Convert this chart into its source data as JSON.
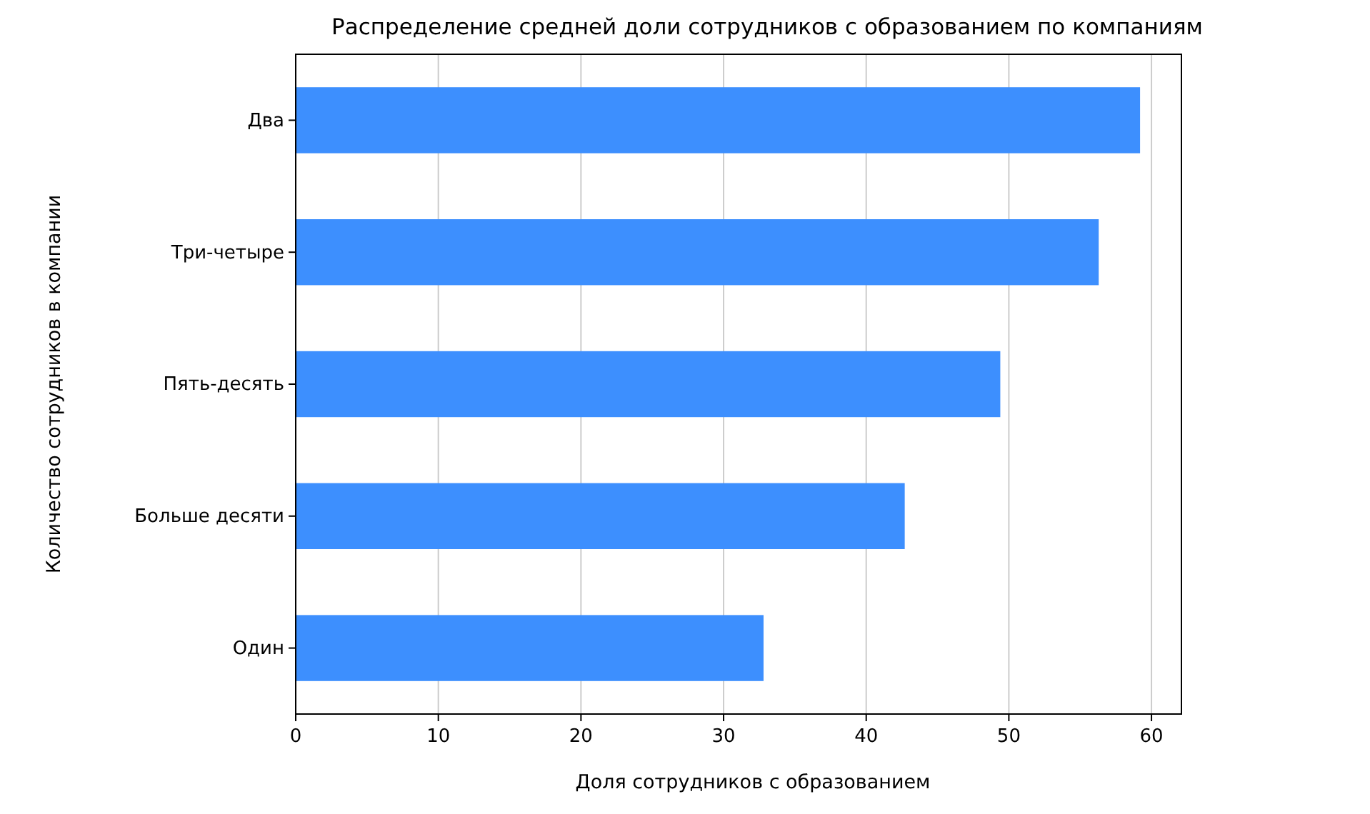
{
  "chart_data": {
    "type": "bar",
    "orientation": "horizontal",
    "title": "Распределение средней доли сотрудников с образованием по компаниям",
    "xlabel": "Доля сотрудников с образованием",
    "ylabel": "Количество сотрудников в компании",
    "categories": [
      "Два",
      "Три-четыре",
      "Пять-десять",
      "Больше десяти",
      "Один"
    ],
    "values": [
      59.2,
      56.3,
      49.4,
      42.7,
      32.8
    ],
    "color": "#3d8ffe",
    "xlim": [
      0,
      62.1
    ],
    "xticks": [
      0,
      10,
      20,
      30,
      40,
      50,
      60
    ],
    "grid": "x"
  }
}
